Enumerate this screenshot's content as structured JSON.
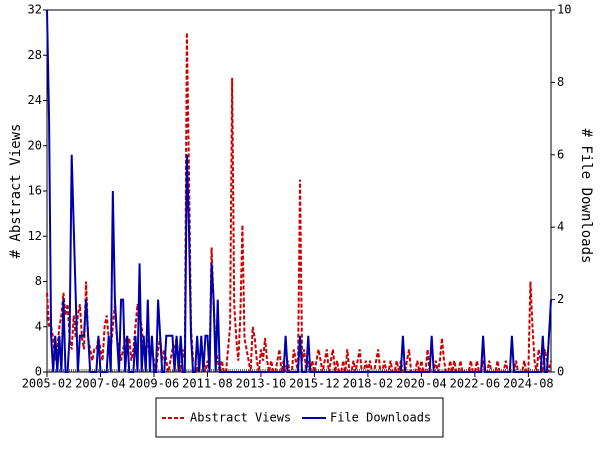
{
  "chart_data": {
    "type": "line",
    "y_label": "# Abstract Views",
    "y2_label": "# File Downloads",
    "x": [
      "2005-02",
      "2005-03",
      "2005-04",
      "2005-05",
      "2005-06",
      "2005-07",
      "2005-08",
      "2005-09",
      "2005-10",
      "2005-11",
      "2005-12",
      "2006-01",
      "2006-02",
      "2006-03",
      "2006-04",
      "2006-05",
      "2006-06",
      "2006-07",
      "2006-08",
      "2006-09",
      "2006-10",
      "2006-11",
      "2006-12",
      "2007-01",
      "2007-02",
      "2007-03",
      "2007-04",
      "2007-05",
      "2007-06",
      "2007-07",
      "2007-08",
      "2007-09",
      "2007-10",
      "2007-11",
      "2007-12",
      "2008-01",
      "2008-02",
      "2008-03",
      "2008-04",
      "2008-05",
      "2008-06",
      "2008-07",
      "2008-08",
      "2008-09",
      "2008-10",
      "2008-11",
      "2008-12",
      "2009-01",
      "2009-02",
      "2009-03",
      "2009-04",
      "2009-05",
      "2009-06",
      "2009-07",
      "2009-08",
      "2009-09",
      "2009-10",
      "2009-11",
      "2009-12",
      "2010-01",
      "2010-02",
      "2010-03",
      "2010-04",
      "2010-05",
      "2010-06",
      "2010-07",
      "2010-08",
      "2010-09",
      "2010-10",
      "2010-11",
      "2010-12",
      "2011-01",
      "2011-02",
      "2011-03",
      "2011-04",
      "2011-05",
      "2011-06",
      "2011-07",
      "2011-08",
      "2011-09",
      "2011-10",
      "2011-11",
      "2011-12",
      "2012-01",
      "2012-02",
      "2012-03",
      "2012-04",
      "2012-05",
      "2012-06",
      "2012-07",
      "2012-08",
      "2012-09",
      "2012-10",
      "2012-11",
      "2012-12",
      "2013-01",
      "2013-02",
      "2013-03",
      "2013-04",
      "2013-05",
      "2013-06",
      "2013-07",
      "2013-08",
      "2013-09",
      "2013-10",
      "2013-11",
      "2013-12",
      "2014-01",
      "2014-02",
      "2014-03",
      "2014-04",
      "2014-05",
      "2014-06",
      "2014-07",
      "2014-08",
      "2014-09",
      "2014-10",
      "2014-11",
      "2014-12",
      "2015-01",
      "2015-02",
      "2015-03",
      "2015-04",
      "2015-05",
      "2015-06",
      "2015-07",
      "2015-08",
      "2015-09",
      "2015-10",
      "2015-11",
      "2015-12",
      "2016-01",
      "2016-02",
      "2016-03",
      "2016-04",
      "2016-05",
      "2016-06",
      "2016-07",
      "2016-08",
      "2016-09",
      "2016-10",
      "2016-11",
      "2016-12",
      "2017-01",
      "2017-02",
      "2017-03",
      "2017-04",
      "2017-05",
      "2017-06",
      "2017-07",
      "2017-08",
      "2017-09",
      "2017-10",
      "2017-11",
      "2017-12",
      "2018-01",
      "2018-02",
      "2018-03",
      "2018-04",
      "2018-05",
      "2018-06",
      "2018-07",
      "2018-08",
      "2018-09",
      "2018-10",
      "2018-11",
      "2018-12",
      "2019-01",
      "2019-02",
      "2019-03",
      "2019-04",
      "2019-05",
      "2019-06",
      "2019-07",
      "2019-08",
      "2019-09",
      "2019-10",
      "2019-11",
      "2019-12",
      "2020-01",
      "2020-02",
      "2020-03",
      "2020-04",
      "2020-05",
      "2020-06",
      "2020-07",
      "2020-08",
      "2020-09",
      "2020-10",
      "2020-11",
      "2020-12",
      "2021-01",
      "2021-02",
      "2021-03",
      "2021-04",
      "2021-05",
      "2021-06",
      "2021-07",
      "2021-08",
      "2021-09",
      "2021-10",
      "2021-11",
      "2021-12",
      "2022-01",
      "2022-02",
      "2022-03",
      "2022-04",
      "2022-05",
      "2022-06",
      "2022-07",
      "2022-08",
      "2022-09",
      "2022-10",
      "2022-11",
      "2022-12",
      "2023-01",
      "2023-02",
      "2023-03",
      "2023-04",
      "2023-05",
      "2023-06",
      "2023-07",
      "2023-08",
      "2023-09",
      "2023-10",
      "2023-11",
      "2023-12",
      "2024-01",
      "2024-02",
      "2024-03",
      "2024-04",
      "2024-05",
      "2024-06",
      "2024-07",
      "2024-08",
      "2024-09",
      "2024-10",
      "2024-11",
      "2024-12",
      "2025-01",
      "2025-02",
      "2025-03",
      "2025-04",
      "2025-05",
      "2025-06",
      "2025-07"
    ],
    "series": [
      {
        "name": "Abstract Views",
        "color": "#cc0000",
        "dashed": true,
        "values": [
          7,
          4,
          4,
          3,
          1,
          2,
          4,
          5,
          7,
          5,
          6,
          3,
          2,
          5,
          3,
          5,
          6,
          3,
          2,
          8,
          3,
          2,
          1,
          2,
          2,
          3,
          2,
          1,
          4,
          5,
          3,
          2,
          4,
          6,
          3,
          2,
          1,
          2,
          3,
          2,
          3,
          1,
          2,
          4,
          6,
          5,
          4,
          2,
          2,
          3,
          1,
          2,
          1,
          0,
          2,
          3,
          1,
          2,
          1,
          0,
          1,
          2,
          2,
          3,
          1,
          0,
          2,
          1,
          30,
          18,
          4,
          1,
          1,
          0,
          1,
          2,
          1,
          0,
          1,
          0,
          11,
          6,
          2,
          1,
          0,
          1,
          0,
          0,
          2,
          4,
          26,
          6,
          3,
          1,
          5,
          13,
          3,
          2,
          1,
          0,
          4,
          3,
          1,
          0,
          2,
          1,
          3,
          1,
          0,
          1,
          0,
          0,
          1,
          2,
          0,
          1,
          0,
          1,
          0,
          0,
          2,
          1,
          0,
          17,
          1,
          2,
          0,
          1,
          0,
          1,
          0,
          1,
          2,
          1,
          0,
          1,
          2,
          0,
          1,
          2,
          0,
          1,
          0,
          0,
          1,
          0,
          2,
          0,
          0,
          1,
          0,
          1,
          2,
          0,
          0,
          1,
          0,
          1,
          0,
          0,
          1,
          2,
          0,
          0,
          1,
          0,
          0,
          1,
          0,
          0,
          1,
          0,
          1,
          0,
          0,
          1,
          2,
          0,
          0,
          0,
          1,
          0,
          1,
          0,
          0,
          2,
          0,
          0,
          0,
          1,
          0,
          1,
          3,
          1,
          0,
          0,
          1,
          0,
          1,
          0,
          0,
          1,
          0,
          0,
          0,
          0,
          1,
          0,
          0,
          1,
          0,
          0,
          1,
          0,
          0,
          1,
          0,
          0,
          0,
          1,
          0,
          0,
          0,
          1,
          0,
          0,
          0,
          0,
          1,
          0,
          0,
          0,
          1,
          0,
          0,
          8,
          4,
          1,
          0,
          2,
          1,
          0,
          2,
          1,
          0,
          1
        ]
      },
      {
        "name": "File Downloads",
        "color": "#0000aa",
        "dashed": false,
        "axis": "y2",
        "values": [
          10,
          7,
          1,
          0,
          1,
          0,
          1,
          0,
          2,
          0,
          0,
          1,
          6,
          4,
          2,
          0,
          1,
          1,
          1,
          2,
          1,
          0,
          0,
          0,
          0,
          1,
          0,
          0,
          0,
          0,
          1,
          0,
          5,
          2,
          1,
          0,
          2,
          2,
          0,
          1,
          0,
          0,
          0,
          1,
          0,
          3,
          0,
          1,
          0,
          2,
          0,
          1,
          0,
          0,
          2,
          1,
          0,
          0,
          1,
          1,
          1,
          1,
          0,
          1,
          0,
          1,
          0,
          0,
          6,
          4,
          1,
          0,
          0,
          1,
          0,
          1,
          0,
          1,
          1,
          0,
          3,
          2,
          0,
          2,
          0,
          0,
          0,
          0,
          0,
          0,
          0,
          0,
          0,
          0,
          0,
          0,
          0,
          0,
          0,
          0,
          0,
          0,
          0,
          0,
          0,
          0,
          0,
          0,
          0,
          0,
          0,
          0,
          0,
          0,
          0,
          0,
          1,
          0,
          0,
          0,
          0,
          0,
          0,
          1,
          0,
          0,
          0,
          1,
          0,
          0,
          0,
          0,
          0,
          0,
          0,
          0,
          0,
          0,
          0,
          0,
          0,
          0,
          0,
          0,
          0,
          0,
          0,
          0,
          0,
          0,
          0,
          0,
          0,
          0,
          0,
          0,
          0,
          0,
          0,
          0,
          0,
          0,
          0,
          0,
          0,
          0,
          0,
          0,
          0,
          0,
          0,
          0,
          0,
          1,
          0,
          0,
          0,
          0,
          0,
          0,
          0,
          0,
          0,
          0,
          0,
          0,
          0,
          1,
          0,
          0,
          0,
          0,
          0,
          0,
          0,
          0,
          0,
          0,
          0,
          0,
          0,
          0,
          0,
          0,
          0,
          0,
          0,
          0,
          0,
          0,
          0,
          0,
          1,
          0,
          0,
          0,
          0,
          0,
          0,
          0,
          0,
          0,
          0,
          0,
          0,
          0,
          1,
          0,
          0,
          0,
          0,
          0,
          0,
          0,
          0,
          0,
          0,
          0,
          0,
          0,
          0,
          1,
          0,
          0,
          1,
          2
        ]
      }
    ],
    "ylim": [
      0,
      32
    ],
    "yticks": [
      0,
      4,
      8,
      12,
      16,
      20,
      24,
      28,
      32
    ],
    "y2lim": [
      0,
      10
    ],
    "y2ticks": [
      0,
      2,
      4,
      6,
      8,
      10
    ],
    "xticks": [
      "2005-02",
      "2007-04",
      "2009-06",
      "2011-08",
      "2013-10",
      "2015-12",
      "2018-02",
      "2020-04",
      "2022-06",
      "2024-08"
    ],
    "legend": "bottom"
  }
}
